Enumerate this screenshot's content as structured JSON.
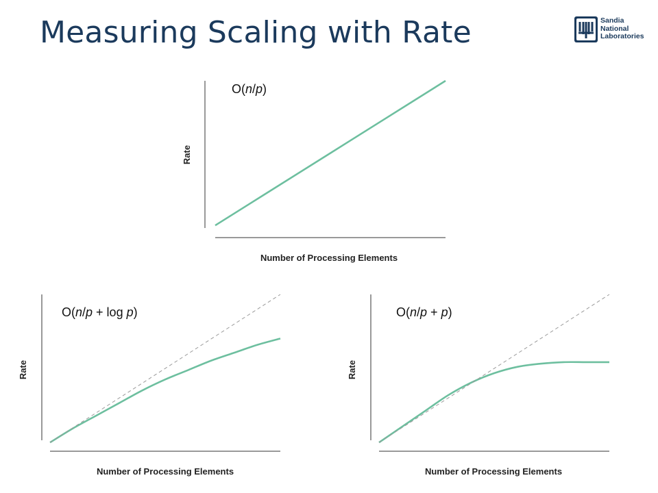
{
  "slide": {
    "title": "Measuring Scaling with Rate",
    "logo": {
      "line1": "Sandia",
      "line2": "National",
      "line3": "Laboratories",
      "icon": "sandia-thunderbird-icon",
      "color": "#1b3a5c"
    }
  },
  "colors": {
    "curve": "#6dbf9f",
    "reference": "#9a9a9a",
    "title": "#1b3a5c"
  },
  "chart_data": [
    {
      "type": "line",
      "title": "O(n/p)",
      "xlabel": "Number of Processing Elements",
      "ylabel": "Rate",
      "xlim": [
        0,
        1
      ],
      "ylim": [
        0,
        1
      ],
      "ticks": false,
      "grid": false,
      "series": [
        {
          "style": "solid",
          "x": [
            0,
            0.25,
            0.5,
            0.75,
            1
          ],
          "values": [
            0.04,
            0.28,
            0.52,
            0.76,
            1.0
          ]
        }
      ]
    },
    {
      "type": "line",
      "title": "O(n/p + log p)",
      "xlabel": "Number of Processing Elements",
      "ylabel": "Rate",
      "xlim": [
        0,
        1
      ],
      "ylim": [
        0,
        1
      ],
      "ticks": false,
      "grid": false,
      "series": [
        {
          "style": "solid",
          "x": [
            0,
            0.1,
            0.2,
            0.3,
            0.4,
            0.5,
            0.6,
            0.7,
            0.8,
            0.9,
            1.0
          ],
          "values": [
            0.06,
            0.15,
            0.23,
            0.31,
            0.39,
            0.46,
            0.52,
            0.58,
            0.63,
            0.68,
            0.72
          ]
        },
        {
          "style": "dashed",
          "x": [
            0,
            1
          ],
          "values": [
            0.06,
            1.0
          ]
        }
      ]
    },
    {
      "type": "line",
      "title": "O(n/p + p)",
      "xlabel": "Number of Processing Elements",
      "ylabel": "Rate",
      "xlim": [
        0,
        1
      ],
      "ylim": [
        0,
        1
      ],
      "ticks": false,
      "grid": false,
      "series": [
        {
          "style": "solid",
          "x": [
            0,
            0.1,
            0.2,
            0.3,
            0.4,
            0.5,
            0.6,
            0.7,
            0.8,
            0.9,
            1.0
          ],
          "values": [
            0.06,
            0.16,
            0.26,
            0.36,
            0.44,
            0.5,
            0.54,
            0.56,
            0.57,
            0.57,
            0.57
          ]
        },
        {
          "style": "dashed",
          "x": [
            0,
            1
          ],
          "values": [
            0.06,
            1.0
          ]
        }
      ]
    }
  ]
}
